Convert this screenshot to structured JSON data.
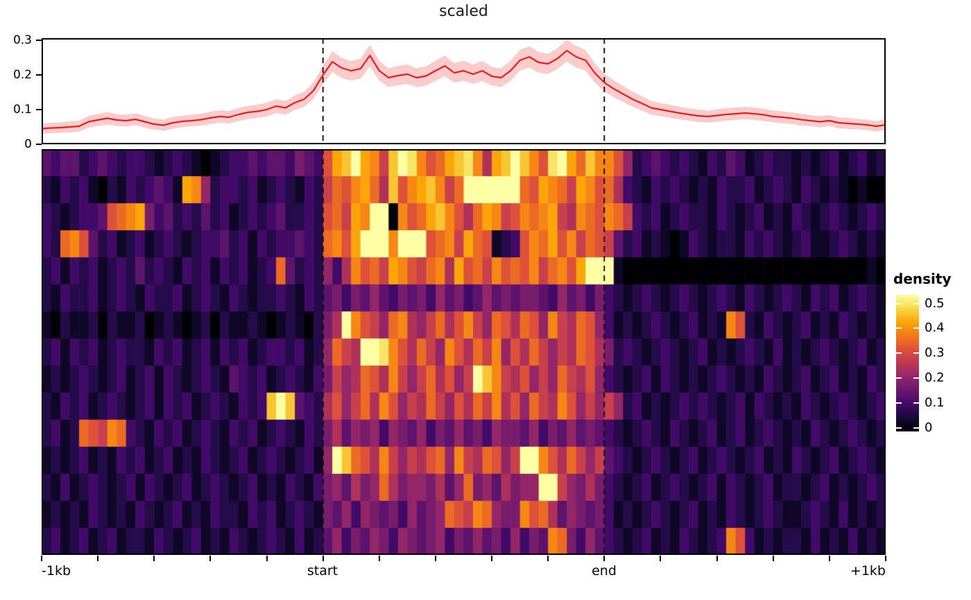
{
  "title": "scaled",
  "chart_data": [
    {
      "type": "line",
      "title": "scaled",
      "xlabel": "",
      "ylabel": "",
      "ylim": [
        0,
        0.306
      ],
      "grid": false,
      "ytick_labels": [
        "0.3",
        "0.2",
        "0.1",
        "0"
      ],
      "ytick_values": [
        0.3,
        0.2,
        0.1,
        0
      ],
      "x_categories": [
        "-1kb",
        "start",
        "end",
        "+1kb"
      ],
      "guides_frac": [
        0.33333,
        0.66667
      ],
      "line_color": "#e41f1f",
      "band_color": "rgba(237,68,68,0.27)",
      "values": [
        0.045,
        0.047,
        0.048,
        0.05,
        0.052,
        0.065,
        0.07,
        0.075,
        0.07,
        0.068,
        0.072,
        0.065,
        0.058,
        0.055,
        0.062,
        0.066,
        0.068,
        0.071,
        0.076,
        0.08,
        0.078,
        0.086,
        0.092,
        0.095,
        0.1,
        0.11,
        0.105,
        0.12,
        0.13,
        0.155,
        0.2,
        0.238,
        0.22,
        0.212,
        0.218,
        0.256,
        0.212,
        0.192,
        0.198,
        0.202,
        0.192,
        0.197,
        0.212,
        0.226,
        0.206,
        0.212,
        0.202,
        0.212,
        0.196,
        0.192,
        0.212,
        0.242,
        0.252,
        0.236,
        0.232,
        0.247,
        0.27,
        0.252,
        0.242,
        0.205,
        0.178,
        0.16,
        0.145,
        0.13,
        0.118,
        0.105,
        0.1,
        0.095,
        0.09,
        0.086,
        0.082,
        0.08,
        0.083,
        0.086,
        0.088,
        0.09,
        0.088,
        0.085,
        0.08,
        0.078,
        0.075,
        0.071,
        0.068,
        0.065,
        0.068,
        0.062,
        0.06,
        0.058,
        0.056,
        0.052,
        0.056
      ],
      "band": [
        0.015,
        0.015,
        0.015,
        0.016,
        0.016,
        0.017,
        0.017,
        0.018,
        0.017,
        0.017,
        0.017,
        0.017,
        0.016,
        0.016,
        0.017,
        0.017,
        0.017,
        0.017,
        0.018,
        0.018,
        0.018,
        0.019,
        0.019,
        0.019,
        0.02,
        0.02,
        0.02,
        0.021,
        0.022,
        0.024,
        0.027,
        0.03,
        0.029,
        0.028,
        0.029,
        0.031,
        0.029,
        0.027,
        0.028,
        0.028,
        0.027,
        0.028,
        0.029,
        0.03,
        0.028,
        0.029,
        0.028,
        0.029,
        0.027,
        0.027,
        0.029,
        0.03,
        0.031,
        0.03,
        0.029,
        0.03,
        0.032,
        0.031,
        0.03,
        0.028,
        0.026,
        0.024,
        0.023,
        0.022,
        0.021,
        0.02,
        0.019,
        0.019,
        0.018,
        0.018,
        0.018,
        0.017,
        0.018,
        0.018,
        0.018,
        0.018,
        0.018,
        0.018,
        0.017,
        0.017,
        0.017,
        0.017,
        0.016,
        0.016,
        0.016,
        0.016,
        0.016,
        0.015,
        0.015,
        0.015,
        0.015
      ]
    },
    {
      "type": "heatmap",
      "rows": 15,
      "cols": 90,
      "value_encoding": "hex char 0-f maps linearly through colormap (density 0 to 0.52)",
      "colormap": "inferno",
      "colormap_stops": [
        "#000004",
        "#160b39",
        "#420a68",
        "#6a176e",
        "#932667",
        "#bc3754",
        "#dd513a",
        "#f37819",
        "#fca50a",
        "#f6d746",
        "#fcffa4"
      ],
      "row_values": [
        "4344234323321232101233434435439cdfcb8dfeb9acdeb7cdfdb9efcadbb96234323213243123221212312312",
        "213231021323431cb62332312321328a9bca7d9bcdb8affffffa9cba8cb9a73213232121322312321321210100",
        "32123349abc5342324231232342232 9a8cbff0b9acdb97acb89babc87ba9ba832312322132123121 3212321232",
        "32ab94231231232123342313233432ab9cfffbfff9ab8ca91239bac9b8a984231210132122132321 2311232121",
        "2313231232423213231323123a4232637b9a8cb98ab7c9a8b9a9b8ab9cfff1000000000000000000 0000000010",
        "213223123213223123213212232132453546435453645346454554364535321232123212321321232132312321",
        "10211202112012101202112101210257fb986ab768a79b86a97a96b87a963121232123121b9213212312132121",
        "2313231232213231231323123323126a87ffeb97a86b97a8b697a8687a97523212321231212321312123212312",
        "1212321231231321232143231232135867a97b868a7968fdb879686a87963212313212123212132 12312312132",
        "21323123212313231232 1323dfd4327968a7b9687a8697a8b796a87b96868623121232321231321 21321232123",
        "2312a98ba3213231232132312321325746563654635464536554635464543212321321231231232 12132123212",
        "12123121323123121321231232 12316fda97b86879a6b87a968ffb97a8684321232123123212312 13212312321",
        "21312321231321231232123121321356475 6a75665746a5647566ff865753212312321231321231 22123121232",
        "121213212132123121322132312321546365453 6456a98ba655b9a7465453121232123121321232 11232131212",
        "2312312312213212312132123213124635465365456354645363 54ba53643212312132123b93121 22131213121"
      ],
      "colorbar": {
        "label": "density",
        "tick_labels": [
          "0.5",
          "0.4",
          "0.3",
          "0.2",
          "0.1",
          "0"
        ],
        "tick_values": [
          0.5,
          0.4,
          0.3,
          0.2,
          0.1,
          0
        ],
        "vmin": -0.015,
        "vmax": 0.535,
        "position": "right"
      },
      "x_tick_count": 16,
      "x_labels": [
        "-1kb",
        "start",
        "end",
        "+1kb"
      ],
      "guides_frac": [
        0.33333,
        0.66667
      ]
    }
  ]
}
